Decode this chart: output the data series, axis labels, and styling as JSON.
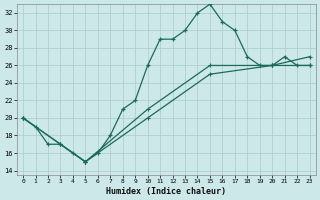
{
  "xlabel": "Humidex (Indice chaleur)",
  "xlim": [
    -0.5,
    23.5
  ],
  "ylim": [
    13.5,
    33.0
  ],
  "yticks": [
    14,
    16,
    18,
    20,
    22,
    24,
    26,
    28,
    30,
    32
  ],
  "xticks": [
    0,
    1,
    2,
    3,
    4,
    5,
    6,
    7,
    8,
    9,
    10,
    11,
    12,
    13,
    14,
    15,
    16,
    17,
    18,
    19,
    20,
    21,
    22,
    23
  ],
  "bg_color": "#cde8e8",
  "line_color": "#1a6b5a",
  "grid_color": "#aacccc",
  "curve_x": [
    0,
    1,
    2,
    3,
    4,
    5,
    6,
    7,
    8,
    9,
    10,
    11,
    12,
    13,
    14,
    15,
    16,
    17,
    18,
    19,
    20,
    21,
    22,
    23
  ],
  "curve_y": [
    20,
    19,
    17,
    17,
    16,
    15,
    16,
    18,
    21,
    22,
    26,
    29,
    29,
    30,
    32,
    33,
    31,
    30,
    27,
    26,
    26,
    27,
    26,
    26
  ],
  "line2_x": [
    0,
    3,
    5,
    10,
    15,
    20,
    23
  ],
  "line2_y": [
    20,
    17,
    15,
    21,
    26,
    26,
    26
  ],
  "line3_x": [
    0,
    3,
    5,
    10,
    15,
    20,
    23
  ],
  "line3_y": [
    20,
    17,
    15,
    20,
    25,
    26,
    27
  ]
}
